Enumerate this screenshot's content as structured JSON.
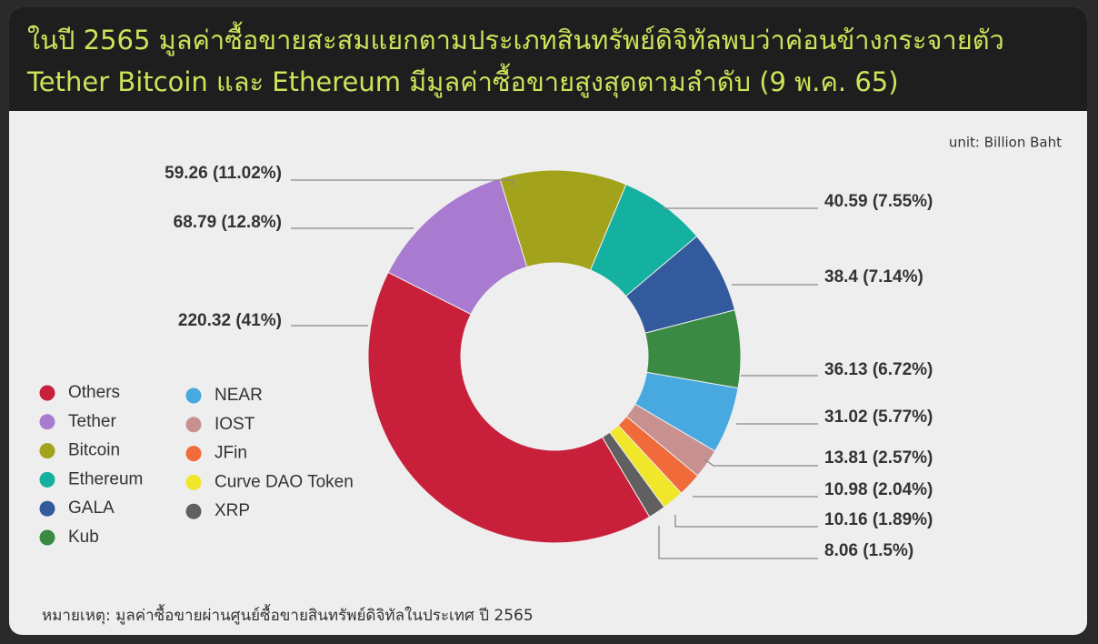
{
  "chart_data": {
    "type": "donut",
    "title": [
      "ในปี 2565 มูลค่าซื้อขายสะสมแยกตามประเภทสินทรัพย์ดิจิทัลพบว่าค่อนข้างกระจายตัว",
      "Tether Bitcoin และ Ethereum มีมูลค่าซื้อขายสูงสุดตามลำดับ (9 พ.ค. 65)"
    ],
    "unit": "unit:  Billion Baht",
    "note": "หมายเหตุ: มูลค่าซื้อขายผ่านศูนย์ซื้อขายสินทรัพย์ดิจิทัลในประเทศ ปี 2565",
    "categories": [
      "Others",
      "Tether",
      "Bitcoin",
      "Ethereum",
      "GALA",
      "Kub",
      "NEAR",
      "IOST",
      "JFin",
      "Curve DAO Token",
      "XRP"
    ],
    "values": [
      220.32,
      68.79,
      59.26,
      40.59,
      38.4,
      36.13,
      31.02,
      13.81,
      10.98,
      10.16,
      8.06
    ],
    "value_labels": [
      "220.32 (41%)",
      "68.79 (12.8%)",
      "59.26 (11.02%)",
      "40.59 (7.55%)",
      "38.4 (7.14%)",
      "36.13 (6.72%)",
      "31.02 (5.77%)",
      "13.81 (2.57%)",
      "10.98 (2.04%)",
      "10.16 (1.89%)",
      "8.06 (1.5%)"
    ],
    "colors": [
      "#c8203a",
      "#a97bd0",
      "#a3a31b",
      "#14b0a0",
      "#335a9c",
      "#3a8a43",
      "#47a9e0",
      "#c99090",
      "#f06a3a",
      "#f0e62a",
      "#606060"
    ],
    "legend": "left"
  }
}
